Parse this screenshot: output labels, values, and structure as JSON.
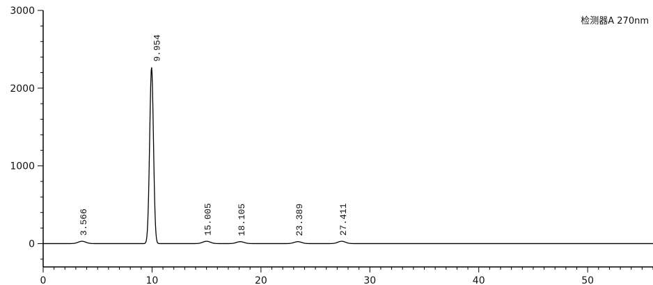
{
  "chart_data": {
    "type": "line",
    "legend": "检测器A 270nm",
    "xlim": [
      0,
      56
    ],
    "ylim": [
      -300,
      3000
    ],
    "x_ticks": [
      0,
      10,
      20,
      30,
      40,
      50
    ],
    "y_ticks": [
      0,
      1000,
      2000,
      3000
    ],
    "series": [
      {
        "peaks": [
          {
            "rt": 3.566,
            "height": 30,
            "label": "3.566"
          },
          {
            "rt": 9.954,
            "height": 2270,
            "label": "9.954"
          },
          {
            "rt": 15.005,
            "height": 30,
            "label": "15.005"
          },
          {
            "rt": 18.105,
            "height": 25,
            "label": "18.105"
          },
          {
            "rt": 23.389,
            "height": 25,
            "label": "23.389"
          },
          {
            "rt": 27.411,
            "height": 30,
            "label": "27.411"
          }
        ]
      }
    ],
    "grid": false
  }
}
